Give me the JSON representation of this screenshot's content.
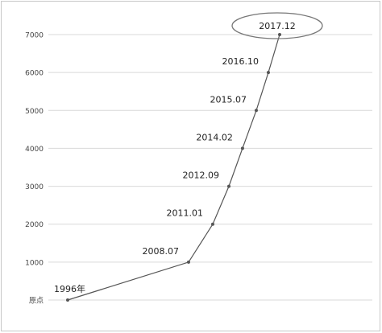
{
  "chart_data": {
    "type": "line",
    "title": "",
    "xlabel": "",
    "ylabel": "",
    "ylim": [
      0,
      7000
    ],
    "yticks": [
      {
        "value": 0,
        "label": "原点"
      },
      {
        "value": 1000,
        "label": "1000"
      },
      {
        "value": 2000,
        "label": "2000"
      },
      {
        "value": 3000,
        "label": "3000"
      },
      {
        "value": 4000,
        "label": "4000"
      },
      {
        "value": 5000,
        "label": "5000"
      },
      {
        "value": 6000,
        "label": "6000"
      },
      {
        "value": 7000,
        "label": "7000"
      }
    ],
    "grid": true,
    "highlight_label": "2017.12",
    "series": [
      {
        "points": [
          {
            "label": "1996年",
            "x": 1996.0,
            "y": 0
          },
          {
            "label": "2008.07",
            "x": 2008.5,
            "y": 1000
          },
          {
            "label": "2011.01",
            "x": 2011.0,
            "y": 2000
          },
          {
            "label": "2012.09",
            "x": 2012.67,
            "y": 3000
          },
          {
            "label": "2014.02",
            "x": 2014.08,
            "y": 4000
          },
          {
            "label": "2015.07",
            "x": 2015.5,
            "y": 5000
          },
          {
            "label": "2016.10",
            "x": 2016.75,
            "y": 6000
          },
          {
            "label": "2017.12",
            "x": 2017.92,
            "y": 7000
          }
        ]
      }
    ],
    "colors": {
      "line": "#555555",
      "point": "#555555",
      "grid": "#d9d9d9",
      "tick_text": "#444444",
      "label_text": "#222222",
      "highlight_ellipse": "#777777"
    }
  }
}
